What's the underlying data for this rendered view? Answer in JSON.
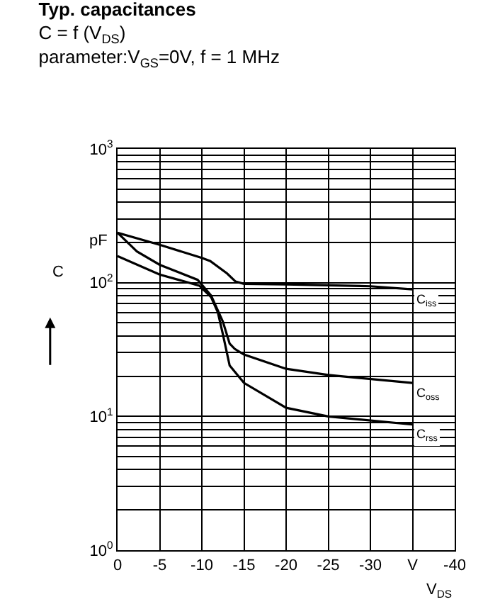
{
  "chart_data": {
    "type": "line",
    "title": "Typ. capacitances",
    "subtitle": "C = f (V$_{DS}$)\nparameter:V$_{GS}$=0V, f = 1 MHz",
    "xlabel": "V$_{DS}$",
    "ylabel": "C",
    "annotations": [
      "pF"
    ],
    "series": [
      {
        "name": "C$_{iss}$",
        "color": "#000000",
        "x": [
          0,
          -5,
          -10,
          -11,
          -13,
          -14,
          -15,
          -20,
          -30,
          -35
        ],
        "values": [
          236,
          192,
          153,
          145,
          117,
          102,
          98,
          97,
          94,
          89
        ]
      },
      {
        "name": "C$_{oss}$",
        "color": "#000000",
        "x": [
          0,
          -2.3,
          -5,
          -9.5,
          -11.1,
          -12.5,
          -13.3,
          -13.9,
          -15,
          -20,
          -25,
          -35
        ],
        "values": [
          236,
          171,
          136,
          105,
          80,
          51,
          35,
          32,
          29,
          22.7,
          20.4,
          17.8
        ]
      },
      {
        "name": "C$_{rss}$",
        "color": "#000000",
        "x": [
          0,
          -5,
          -9.7,
          -11.1,
          -11.9,
          -12.5,
          -13.3,
          -15,
          -20,
          -25,
          -35
        ],
        "values": [
          158,
          115,
          95,
          78,
          60,
          41,
          24,
          17.8,
          11.6,
          10,
          8.7
        ]
      }
    ],
    "xlim": [
      0,
      -40
    ],
    "xticks": [
      0,
      -5,
      -10,
      -15,
      -20,
      -25,
      -30,
      {
        "value": -35,
        "label": "V"
      },
      -40
    ],
    "ylim": [
      1,
      1000
    ],
    "yticks": [
      {
        "value": 1,
        "label": "10$^{0}$"
      },
      {
        "value": 10,
        "label": "10$^{1}$"
      },
      {
        "value": 100,
        "label": "10$^{2}$"
      },
      {
        "value": 1000,
        "label": "10$^{3}$"
      }
    ],
    "log": "y",
    "grid": true,
    "legend": false,
    "marker": "none",
    "line_style": "solid"
  }
}
